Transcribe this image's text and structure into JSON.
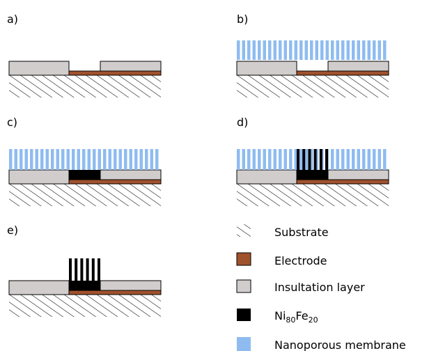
{
  "panels": [
    {
      "id": "a",
      "label": "a)"
    },
    {
      "id": "b",
      "label": "b)"
    },
    {
      "id": "c",
      "label": "c)"
    },
    {
      "id": "d",
      "label": "d)"
    },
    {
      "id": "e",
      "label": "e)"
    }
  ],
  "legend": {
    "substrate": "Substrate",
    "electrode": "Electrode",
    "insulation": "Insultation layer",
    "alloy_base_1": "Ni",
    "alloy_sub_1": "80",
    "alloy_base_2": "Fe",
    "alloy_sub_2": "20",
    "membrane": "Nanoporous membrane"
  },
  "colors": {
    "electrode": "#a0522d",
    "insulation": "#d0cdcc",
    "membrane": "#8fbcf0",
    "alloy": "#000000",
    "outline": "#000000"
  }
}
